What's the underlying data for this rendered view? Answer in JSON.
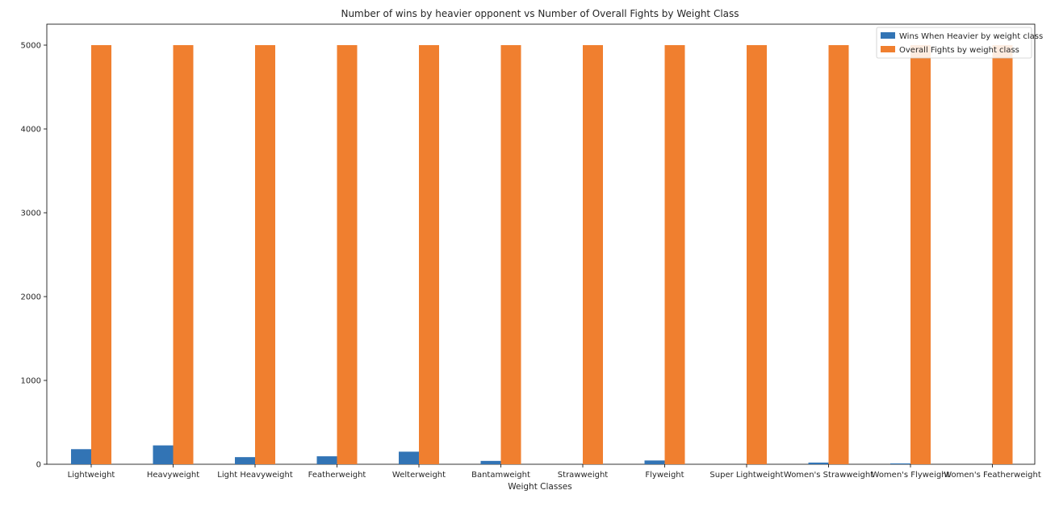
{
  "chart_data": {
    "type": "bar",
    "title": "Number of wins by heavier opponent vs Number of Overall Fights by Weight Class",
    "xlabel": "Weight Classes",
    "ylabel": "",
    "ylim": [
      0,
      5250
    ],
    "yticks": [
      0,
      1000,
      2000,
      3000,
      4000,
      5000
    ],
    "grid": false,
    "legend_position": "top-right",
    "categories": [
      "Lightweight",
      "Heavyweight",
      "Light Heavyweight",
      "Featherweight",
      "Welterweight",
      "Bantamweight",
      "Strawweight",
      "Flyweight",
      "Super Lightweight",
      "Women's Strawweight",
      "Women's Flyweight",
      "Women's Featherweight"
    ],
    "series": [
      {
        "name": "Wins When Heavier by weight class",
        "color": "#3274b5",
        "values": [
          180,
          225,
          85,
          95,
          150,
          40,
          0,
          45,
          0,
          20,
          10,
          0
        ]
      },
      {
        "name": "Overall Fights by weight class",
        "color": "#f07f2f",
        "values": [
          5000,
          5000,
          5000,
          5000,
          5000,
          5000,
          5000,
          5000,
          5000,
          5000,
          5000,
          5000
        ]
      }
    ]
  }
}
